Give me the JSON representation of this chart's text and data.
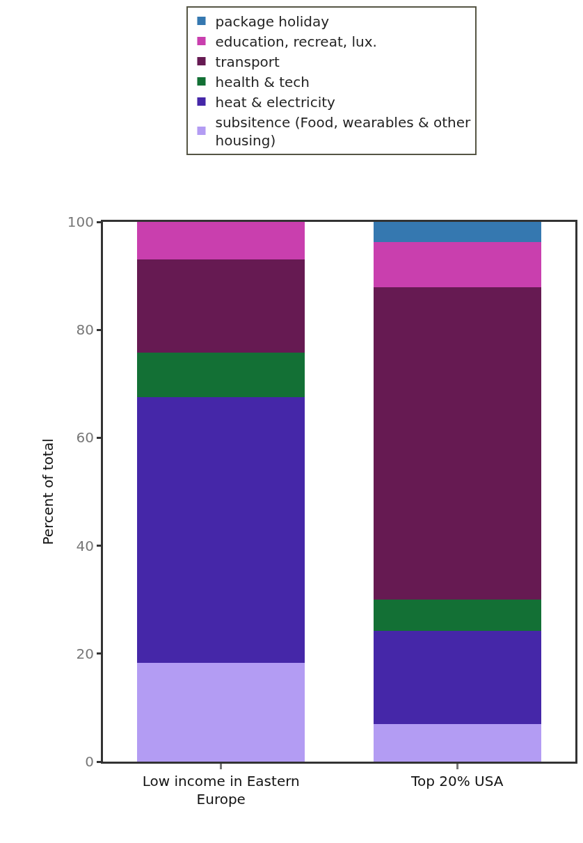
{
  "chart_data": {
    "type": "bar",
    "stacked": true,
    "ylabel": "Percent of total",
    "categories": [
      "Low income in Eastern Europe",
      "Top 20% USA"
    ],
    "series": [
      {
        "name": "subsitence (Food, wearables & other housing)",
        "color": "#b39cf3",
        "values": [
          18.3,
          7.0
        ]
      },
      {
        "name": "heat & electricity",
        "color": "#4527a8",
        "values": [
          49.2,
          17.2
        ]
      },
      {
        "name": "health & tech",
        "color": "#137035",
        "values": [
          8.3,
          5.8
        ]
      },
      {
        "name": "transport",
        "color": "#661a52",
        "values": [
          17.2,
          57.9
        ]
      },
      {
        "name": "education, recreat, lux.",
        "color": "#c93fae",
        "values": [
          7.0,
          8.4
        ]
      },
      {
        "name": "package holiday",
        "color": "#3578b0",
        "values": [
          0,
          3.7
        ]
      }
    ],
    "ylim": [
      0,
      100
    ],
    "yticks": [
      0,
      20,
      40,
      60,
      80,
      100
    ],
    "legend": "top"
  }
}
